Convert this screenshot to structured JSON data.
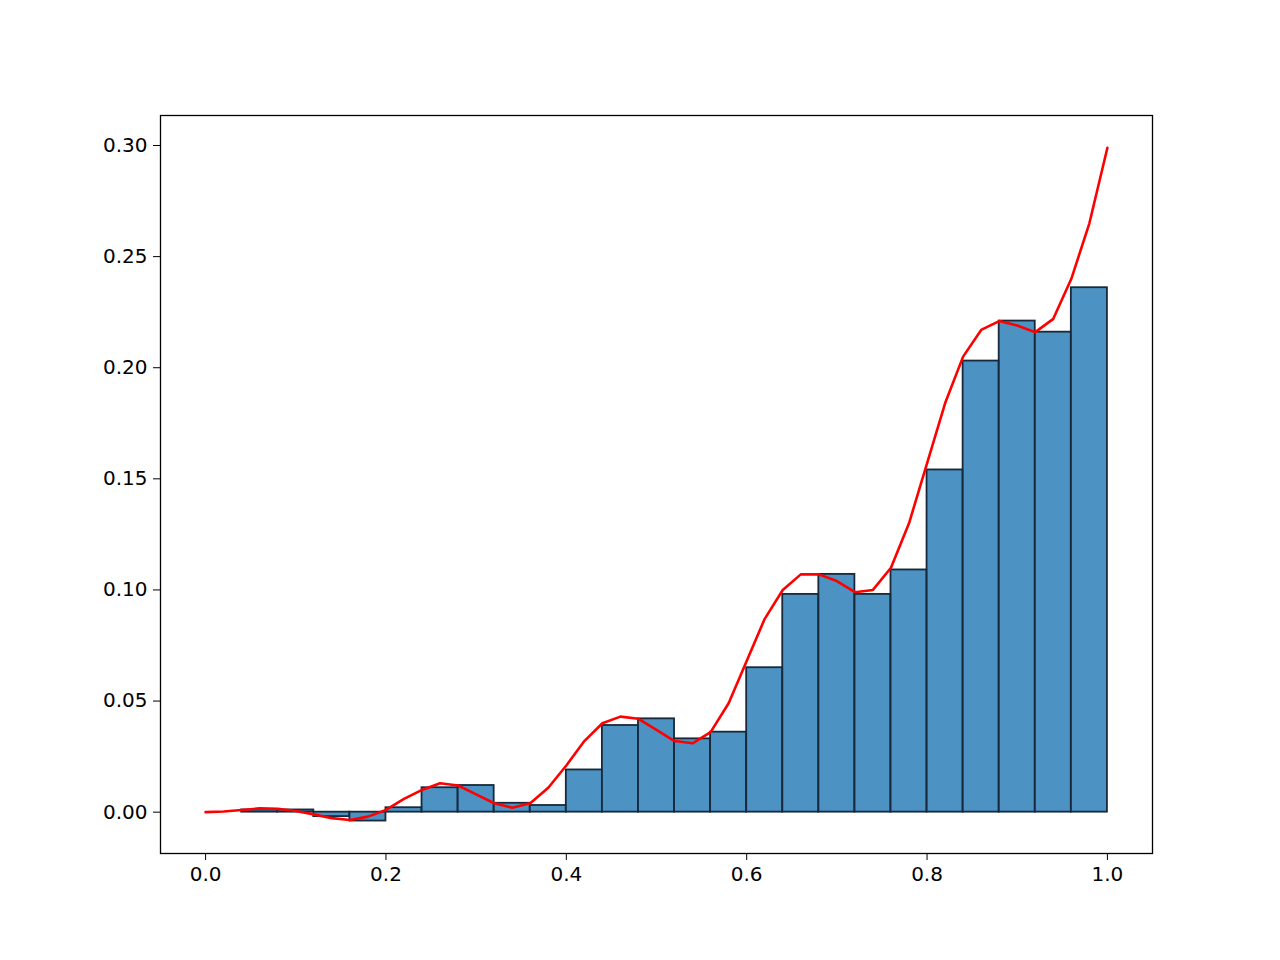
{
  "chart_data": {
    "type": "histogram",
    "bins": [
      0.0,
      0.04,
      0.08,
      0.12,
      0.16,
      0.2,
      0.24,
      0.28,
      0.32,
      0.36,
      0.4,
      0.44,
      0.48,
      0.52,
      0.56,
      0.6,
      0.64,
      0.68,
      0.72,
      0.76,
      0.8,
      0.84,
      0.88,
      0.92,
      0.96,
      1.0
    ],
    "counts": [
      0.0,
      0.001,
      0.001,
      -0.002,
      -0.004,
      0.002,
      0.011,
      0.012,
      0.004,
      0.003,
      0.019,
      0.039,
      0.042,
      0.033,
      0.036,
      0.065,
      0.098,
      0.107,
      0.098,
      0.109,
      0.154,
      0.203,
      0.221,
      0.216,
      0.236
    ],
    "color": "#1f77b4",
    "line": {
      "type": "line",
      "color": "#ff0000",
      "x": [
        0.0,
        0.02,
        0.04,
        0.06,
        0.08,
        0.1,
        0.12,
        0.14,
        0.16,
        0.18,
        0.2,
        0.22,
        0.24,
        0.26,
        0.28,
        0.3,
        0.32,
        0.34,
        0.36,
        0.38,
        0.4,
        0.42,
        0.44,
        0.46,
        0.48,
        0.5,
        0.52,
        0.54,
        0.56,
        0.58,
        0.6,
        0.62,
        0.64,
        0.66,
        0.68,
        0.7,
        0.72,
        0.74,
        0.76,
        0.78,
        0.8,
        0.82,
        0.84,
        0.86,
        0.88,
        0.9,
        0.92,
        0.94,
        0.96,
        0.98,
        1.0
      ],
      "values": [
        0.0,
        0.0003,
        0.001,
        0.0017,
        0.0015,
        0.0005,
        -0.001,
        -0.0027,
        -0.0035,
        -0.002,
        0.001,
        0.006,
        0.01,
        0.013,
        0.012,
        0.008,
        0.004,
        0.002,
        0.004,
        0.011,
        0.021,
        0.032,
        0.04,
        0.043,
        0.042,
        0.037,
        0.032,
        0.031,
        0.036,
        0.049,
        0.068,
        0.087,
        0.1,
        0.107,
        0.107,
        0.104,
        0.099,
        0.1,
        0.11,
        0.13,
        0.157,
        0.184,
        0.205,
        0.217,
        0.221,
        0.219,
        0.216,
        0.222,
        0.24,
        0.265,
        0.299
      ]
    },
    "xlim": [
      -0.05,
      1.05
    ],
    "xticks": [
      {
        "value": 0.0,
        "label": "0.0"
      },
      {
        "value": 0.2,
        "label": "0.2"
      },
      {
        "value": 0.4,
        "label": "0.4"
      },
      {
        "value": 0.6,
        "label": "0.6"
      },
      {
        "value": 0.8,
        "label": "0.8"
      },
      {
        "value": 1.0,
        "label": "1.0"
      }
    ],
    "ylim": [
      -0.0186,
      0.3135
    ],
    "yticks": [
      {
        "value": 0.0,
        "label": "0.00"
      },
      {
        "value": 0.05,
        "label": "0.05"
      },
      {
        "value": 0.1,
        "label": "0.10"
      },
      {
        "value": 0.15,
        "label": "0.15"
      },
      {
        "value": 0.2,
        "label": "0.20"
      },
      {
        "value": 0.25,
        "label": "0.25"
      },
      {
        "value": 0.3,
        "label": "0.30"
      }
    ],
    "grid": false
  }
}
